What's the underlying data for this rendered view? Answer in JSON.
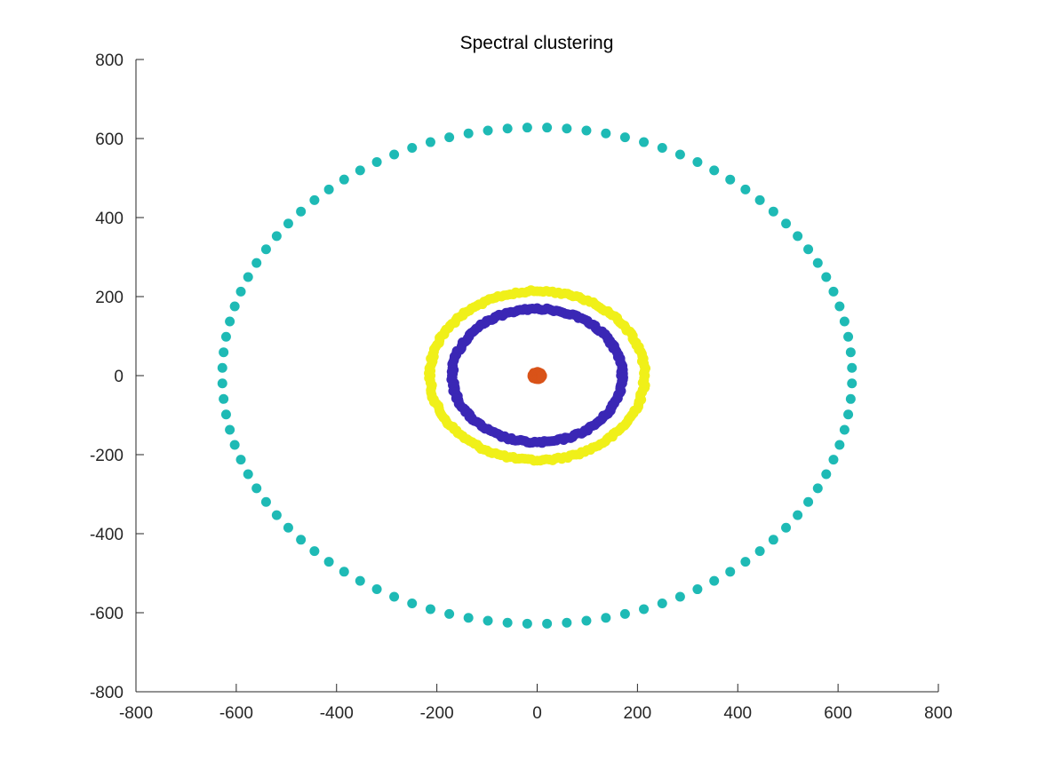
{
  "chart_data": {
    "type": "scatter",
    "title": "Spectral clustering",
    "xlabel": "",
    "ylabel": "",
    "xlim": [
      -800,
      800
    ],
    "ylim": [
      -800,
      800
    ],
    "xticks": [
      -800,
      -600,
      -400,
      -200,
      0,
      200,
      400,
      600,
      800
    ],
    "yticks": [
      -800,
      -600,
      -400,
      -200,
      0,
      200,
      400,
      600,
      800
    ],
    "xtick_labels": [
      "-800",
      "-600",
      "-400",
      "-200",
      "0",
      "200",
      "400",
      "600",
      "800"
    ],
    "ytick_labels": [
      "-800",
      "-600",
      "-400",
      "-200",
      "0",
      "200",
      "400",
      "600",
      "800"
    ],
    "grid": false,
    "series": [
      {
        "color": "#F0F019",
        "radius": 214,
        "count": 220,
        "noise": 3
      },
      {
        "color": "#3A27B5",
        "radius": 169,
        "count": 220,
        "noise": 3
      },
      {
        "color": "#1EBAB5",
        "radius": 628,
        "count": 100,
        "noise": 0
      },
      {
        "color": "#D95319",
        "radius": 9,
        "count": 30,
        "noise": 1
      }
    ]
  }
}
